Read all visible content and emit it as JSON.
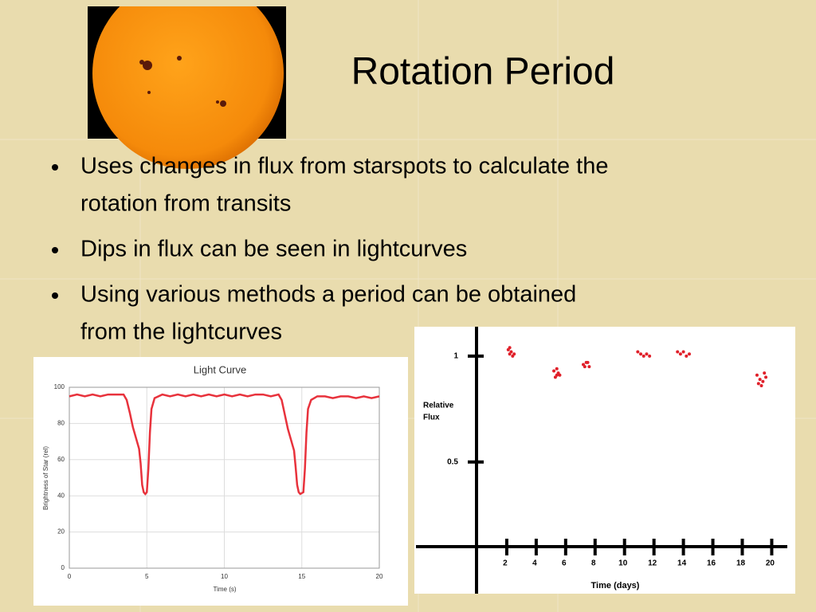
{
  "title": "Rotation Period",
  "bullets": [
    [
      "Uses changes in flux from starspots to calculate the",
      "rotation from transits"
    ],
    [
      "Dips in flux can be seen in lightcurves"
    ],
    [
      "Using various methods a period can be obtained",
      "from the lightcurves"
    ]
  ],
  "chart_data": [
    {
      "type": "line",
      "title": "Light Curve",
      "xlabel": "Time (s)",
      "ylabel": "Brightness of Star (rel)",
      "x": [
        0,
        0.5,
        1,
        1.5,
        2,
        2.5,
        3,
        3.5,
        3.7,
        3.9,
        4.1,
        4.3,
        4.5,
        4.6,
        4.7,
        4.8,
        4.9,
        5.0,
        5.1,
        5.2,
        5.3,
        5.5,
        6,
        6.5,
        7,
        7.5,
        8,
        8.5,
        9,
        9.5,
        10,
        10.5,
        11,
        11.5,
        12,
        12.5,
        13,
        13.5,
        13.7,
        13.9,
        14.1,
        14.3,
        14.5,
        14.6,
        14.7,
        14.8,
        14.9,
        15.1,
        15.2,
        15.3,
        15.4,
        15.6,
        16,
        16.5,
        17,
        17.5,
        18,
        18.5,
        19,
        19.5,
        20
      ],
      "series": [
        {
          "color": "#e8323c",
          "values": [
            95,
            96,
            95,
            96,
            95,
            96,
            96,
            96,
            93,
            86,
            78,
            72,
            66,
            58,
            46,
            42,
            41,
            42,
            55,
            75,
            88,
            94,
            96,
            95,
            96,
            95,
            96,
            95,
            96,
            95,
            96,
            95,
            96,
            95,
            96,
            96,
            95,
            96,
            93,
            85,
            77,
            71,
            65,
            56,
            46,
            42,
            41,
            42,
            55,
            75,
            88,
            93,
            95,
            95,
            94,
            95,
            95,
            94,
            95,
            94,
            95
          ]
        }
      ],
      "xlim": [
        0,
        20
      ],
      "xticks": [
        0,
        5,
        10,
        15,
        20
      ],
      "ylim": [
        0,
        100
      ],
      "yticks": [
        0,
        20,
        40,
        60,
        80,
        100
      ],
      "grid": true
    },
    {
      "type": "scatter",
      "xlabel": "Time (days)",
      "ylabel": [
        "Relative",
        "Flux"
      ],
      "color": "#e0202a",
      "x": [
        2.1,
        2.2,
        2.3,
        2.4,
        2.2,
        2.5,
        5.2,
        5.4,
        5.5,
        5.3,
        5.4,
        5.6,
        7.2,
        7.4,
        7.6,
        7.3,
        7.5,
        10.9,
        11.1,
        11.3,
        11.5,
        11.7,
        13.6,
        13.8,
        14.0,
        14.2,
        14.4,
        19.0,
        19.2,
        19.4,
        19.6,
        19.3,
        19.5,
        19.1
      ],
      "values": [
        1.03,
        1.01,
        1.02,
        1.0,
        1.04,
        1.01,
        0.93,
        0.91,
        0.92,
        0.9,
        0.94,
        0.91,
        0.96,
        0.97,
        0.95,
        0.95,
        0.97,
        1.02,
        1.01,
        1.0,
        1.01,
        1.0,
        1.02,
        1.01,
        1.02,
        1.0,
        1.01,
        0.91,
        0.89,
        0.88,
        0.9,
        0.86,
        0.92,
        0.87
      ],
      "xlim": [
        0,
        21.6
      ],
      "xticks": [
        2,
        4,
        6,
        8,
        10,
        12,
        14,
        16,
        18,
        20
      ],
      "ylim": [
        0.1,
        1.15
      ],
      "yticks": [
        0.5,
        1
      ]
    }
  ]
}
